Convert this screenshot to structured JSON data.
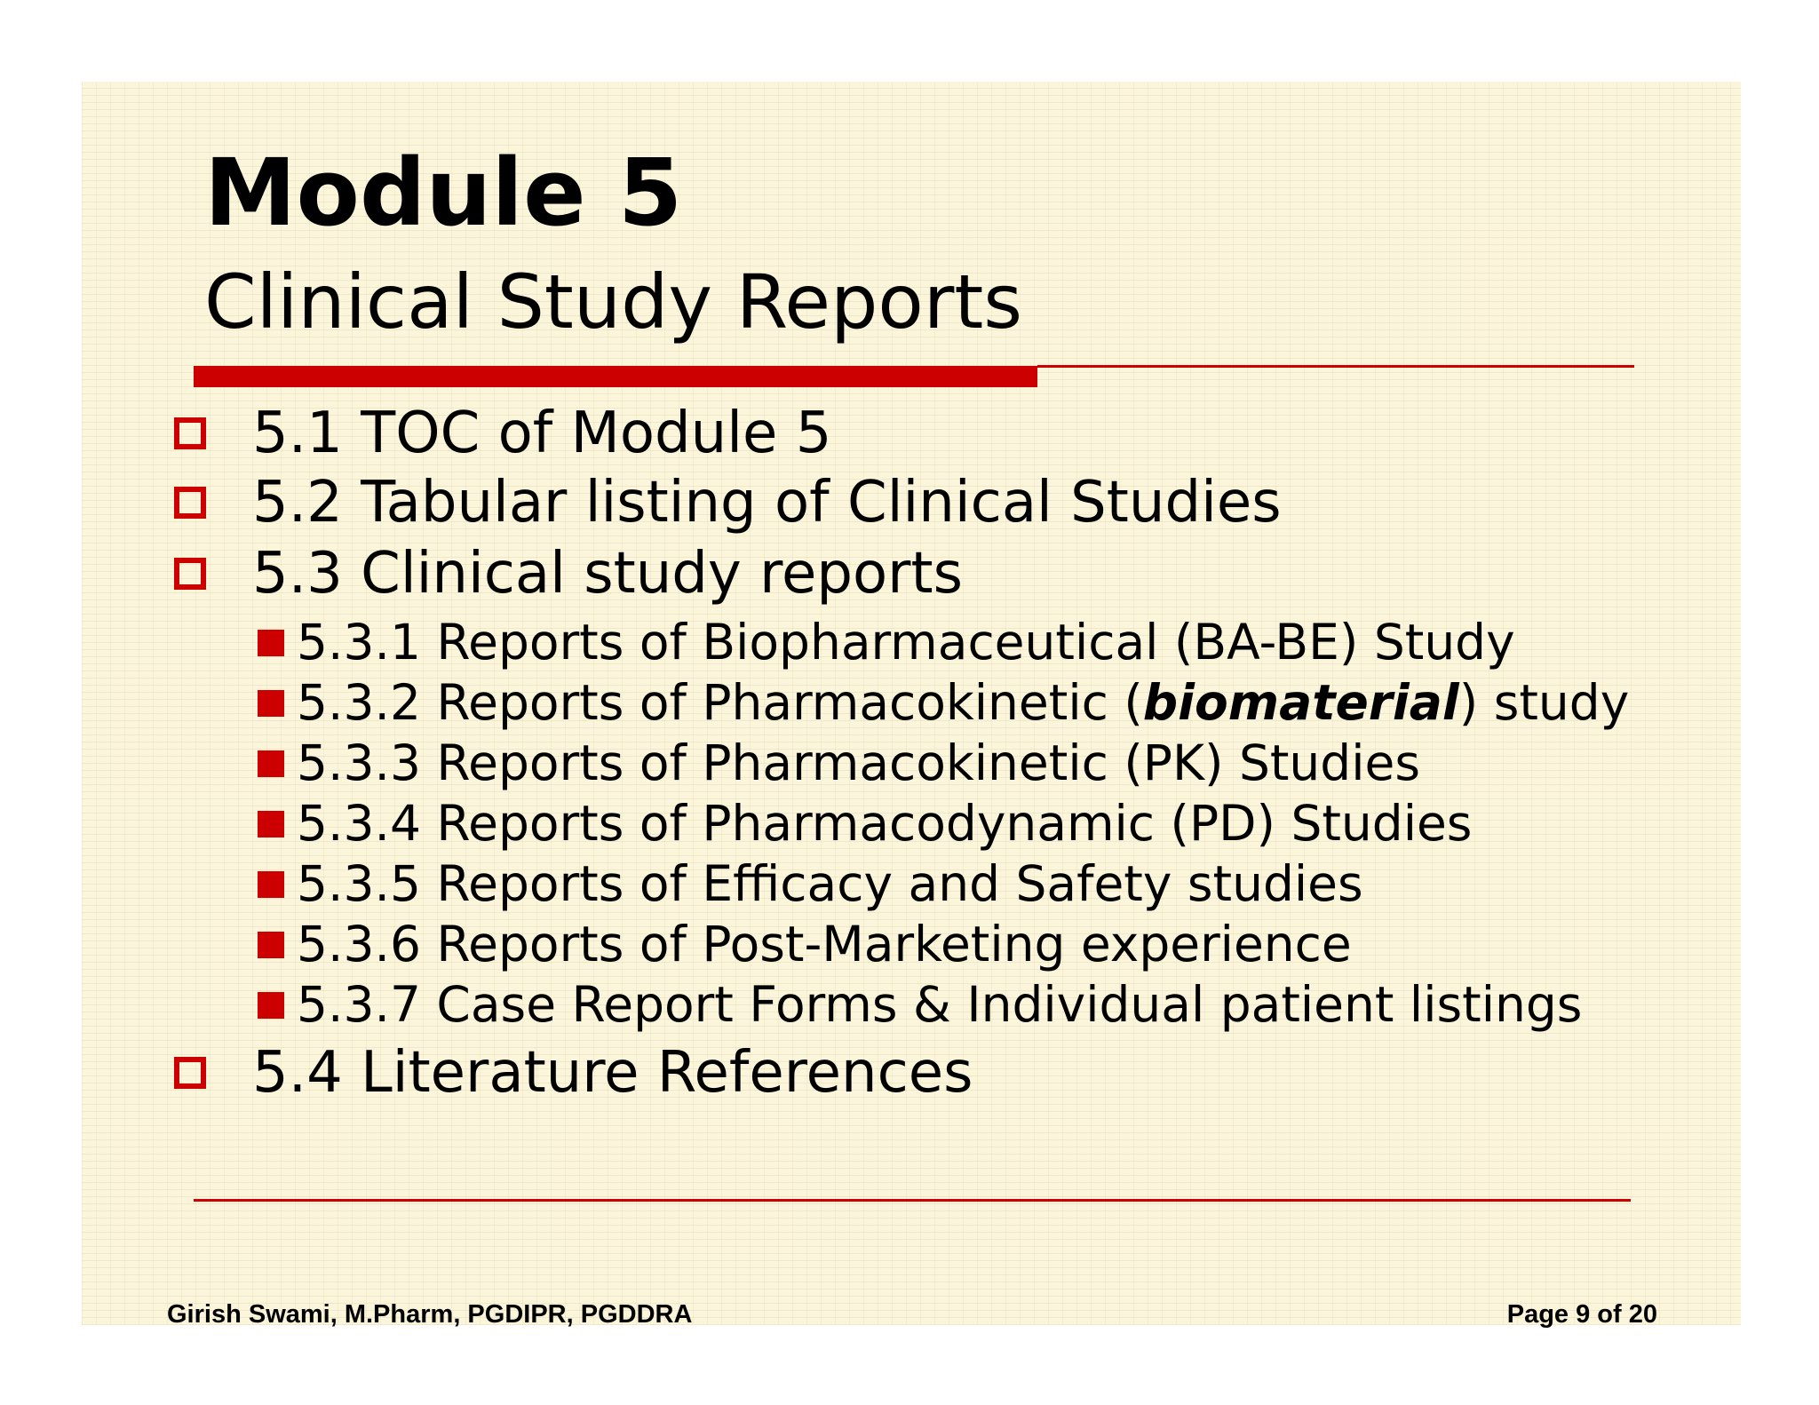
{
  "slide": {
    "title": "Module 5",
    "subtitle": "Clinical Study Reports",
    "bullets": [
      {
        "text": "5.1 TOC of Module 5"
      },
      {
        "text": "5.2 Tabular listing of Clinical Studies"
      },
      {
        "text": "5.3 Clinical study reports"
      },
      {
        "text": "5.4 Literature References"
      }
    ],
    "sub_bullets": [
      {
        "text": "5.3.1 Reports of Biopharmaceutical (BA-BE) Study"
      },
      {
        "before": "5.3.2 Reports of Pharmacokinetic (",
        "emphasis": "biomaterial",
        "after": ") study"
      },
      {
        "text": "5.3.3 Reports of Pharmacokinetic (PK) Studies"
      },
      {
        "text": "5.3.4 Reports of Pharmacodynamic (PD) Studies"
      },
      {
        "text": "5.3.5 Reports of Efficacy and Safety studies"
      },
      {
        "text": "5.3.6 Reports of Post-Marketing experience"
      },
      {
        "text": "5.3.7 Case Report Forms & Individual patient listings"
      }
    ]
  },
  "footer": {
    "author": "Girish Swami, M.Pharm, PGDIPR, PGDDRA",
    "page": "Page 9 of 20"
  },
  "colors": {
    "accent": "#cc0000",
    "background": "#fbf5dc",
    "text": "#000000"
  },
  "icons": {
    "level1_bullet": "hollow-square-icon",
    "level2_bullet": "filled-square-icon"
  }
}
